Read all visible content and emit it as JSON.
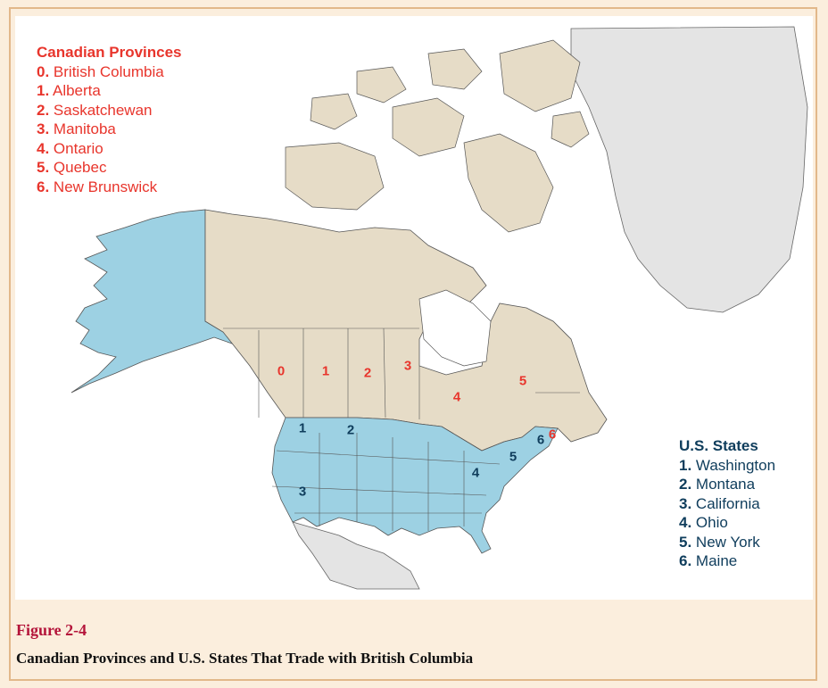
{
  "canada_legend": {
    "heading": "Canadian Provinces",
    "items": [
      {
        "num": "0.",
        "name": "British Columbia"
      },
      {
        "num": "1.",
        "name": "Alberta"
      },
      {
        "num": "2.",
        "name": "Saskatchewan"
      },
      {
        "num": "3.",
        "name": "Manitoba"
      },
      {
        "num": "4.",
        "name": "Ontario"
      },
      {
        "num": "5.",
        "name": "Quebec"
      },
      {
        "num": "6.",
        "name": "New Brunswick"
      }
    ]
  },
  "us_legend": {
    "heading": "U.S. States",
    "items": [
      {
        "num": "1.",
        "name": "Washington"
      },
      {
        "num": "2.",
        "name": "Montana"
      },
      {
        "num": "3.",
        "name": "California"
      },
      {
        "num": "4.",
        "name": "Ohio"
      },
      {
        "num": "5.",
        "name": "New York"
      },
      {
        "num": "6.",
        "name": "Maine"
      }
    ]
  },
  "map_labels": {
    "ca": [
      "0",
      "1",
      "2",
      "3",
      "4",
      "5",
      "6"
    ],
    "us": [
      "1",
      "2",
      "3",
      "4",
      "5",
      "6"
    ]
  },
  "colors": {
    "canada": "#e6dcc7",
    "usa": "#9dd1e3",
    "greenland_mexico": "#e4e4e4",
    "border": "#555555",
    "canada_text": "#e8352c",
    "us_text": "#0f3d5c",
    "figure_number": "#b4143a",
    "panel_bg": "#fbeedd"
  },
  "figure": {
    "number": "Figure 2-4",
    "caption": "Canadian Provinces and U.S. States That Trade with British Columbia"
  }
}
